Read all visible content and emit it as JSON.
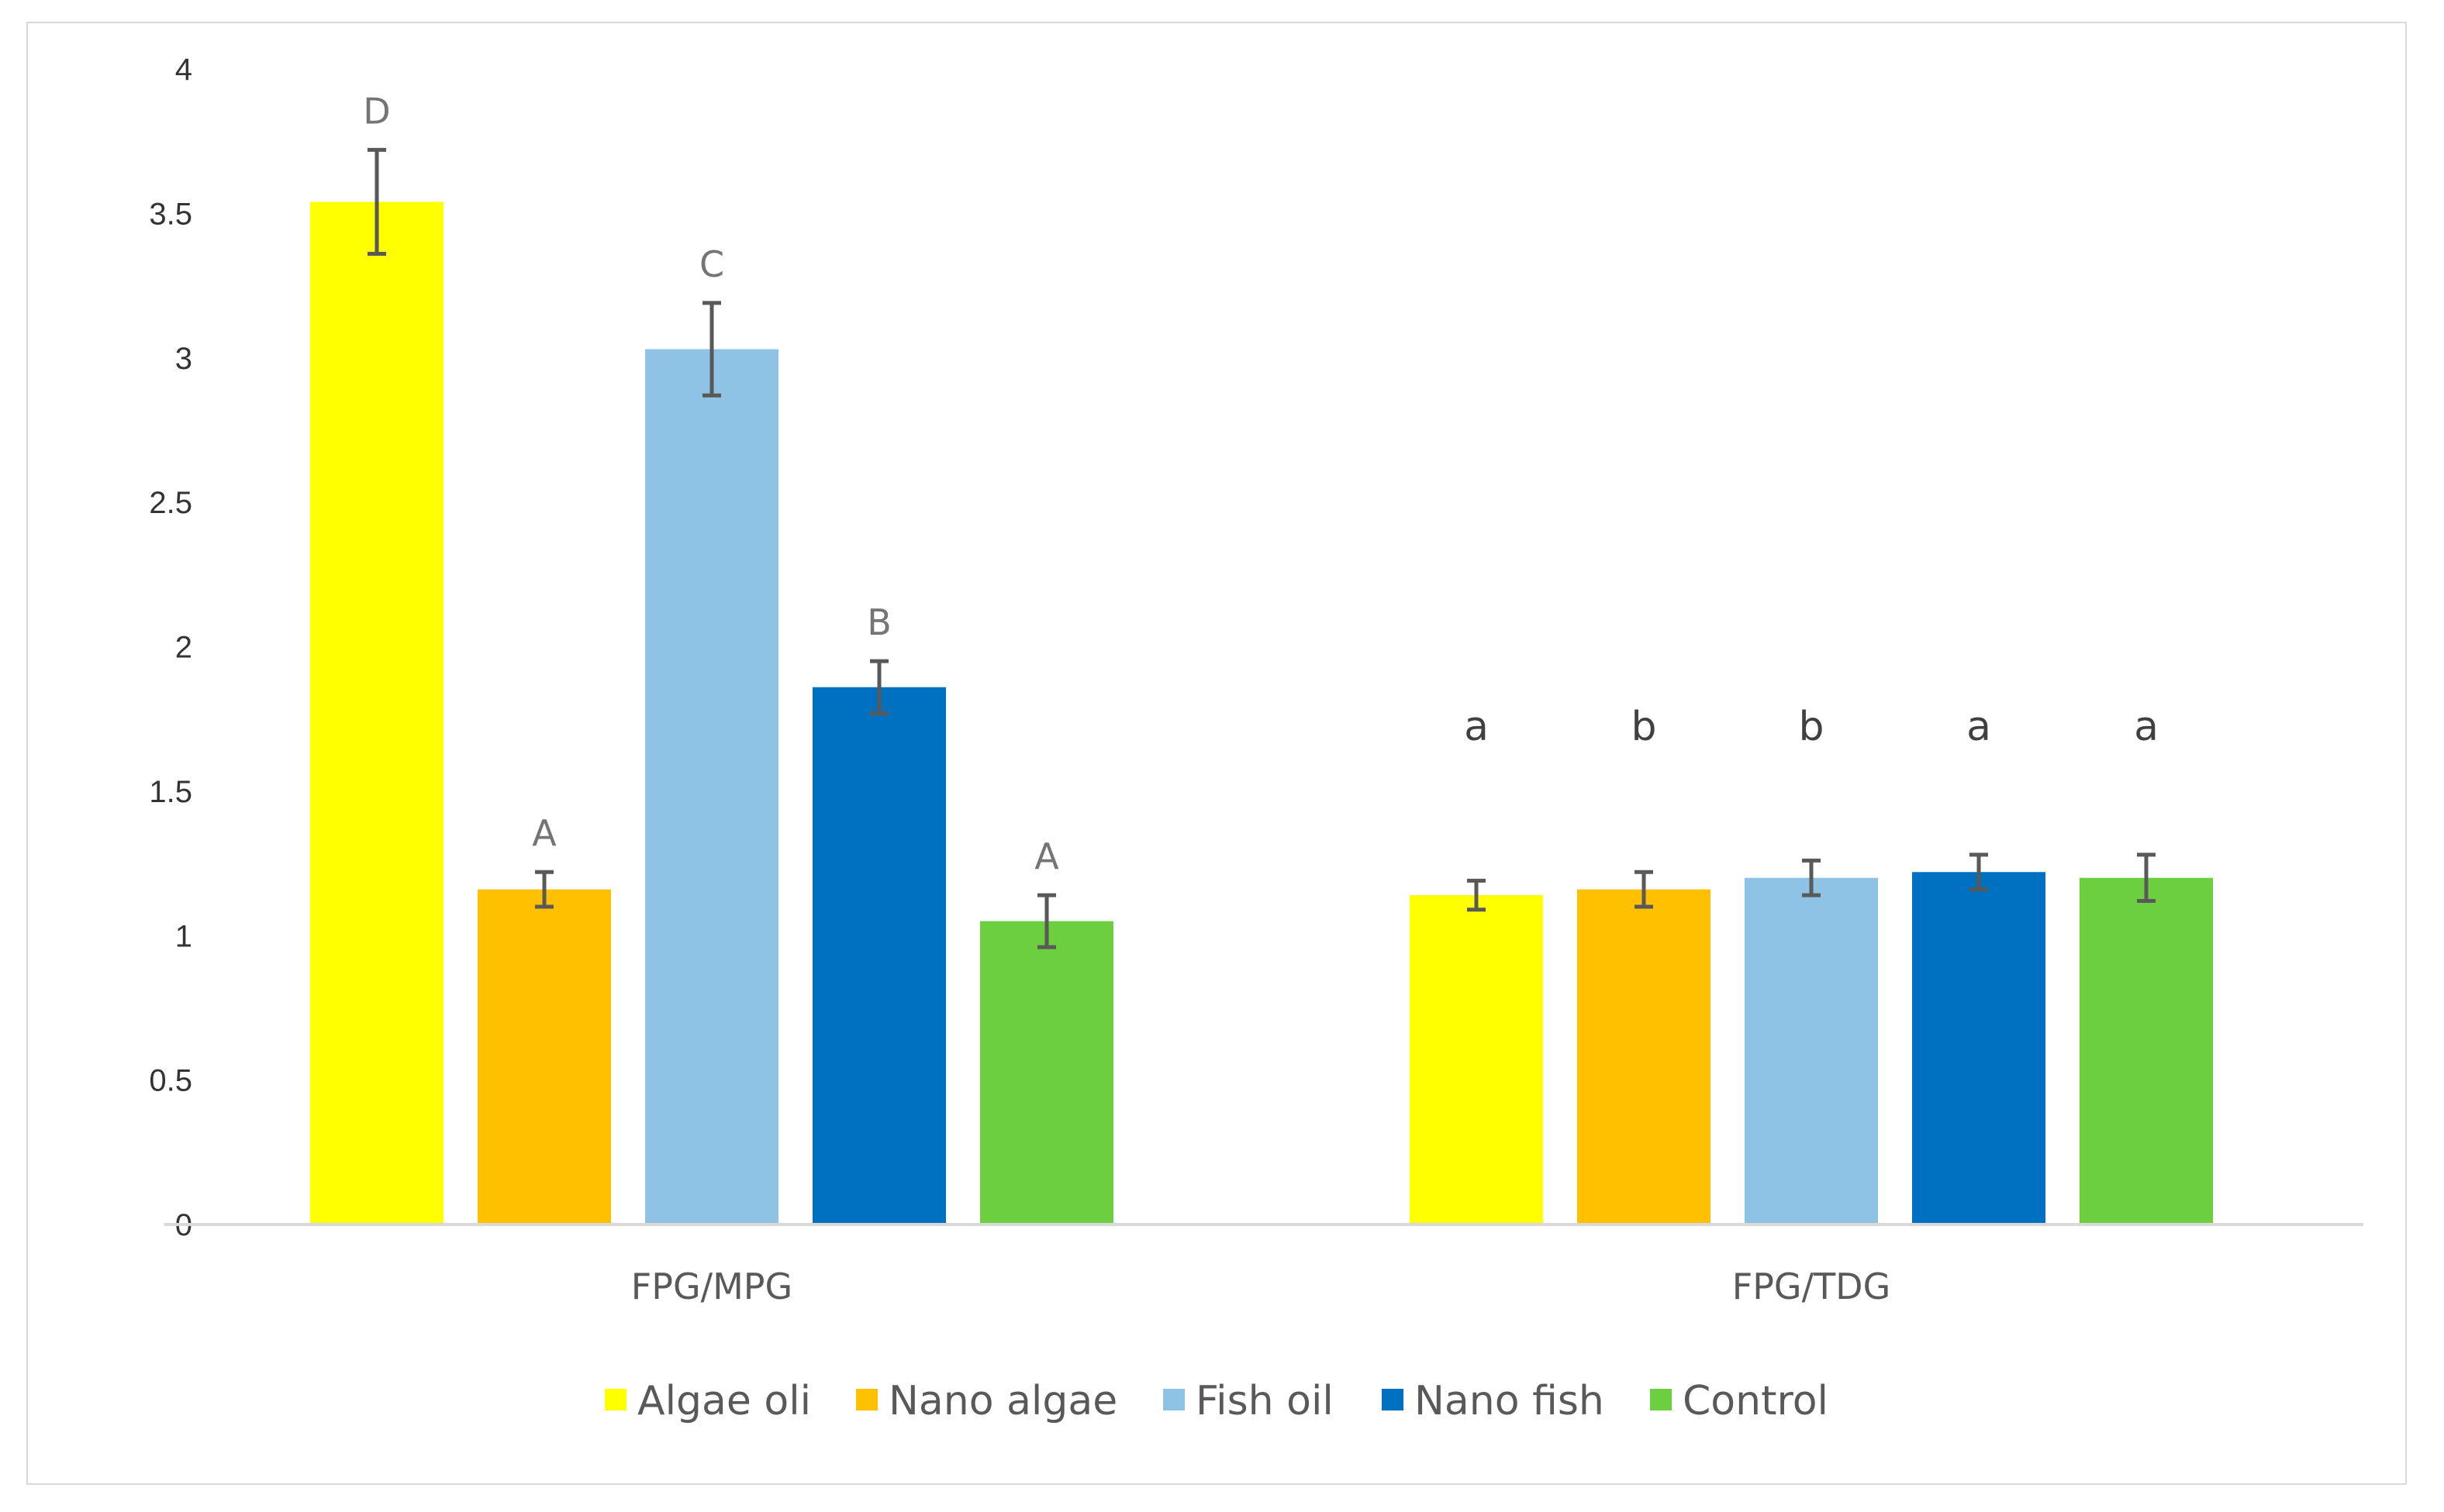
{
  "chart_data": {
    "type": "bar",
    "title": "",
    "xlabel": "",
    "ylabel": "",
    "ylim": [
      0,
      4
    ],
    "yticks": [
      "0",
      "0.5",
      "1",
      "1.5",
      "2",
      "2.5",
      "3",
      "3.5",
      "4"
    ],
    "grid": false,
    "legend_position": "bottom",
    "categories": [
      "FPG/MPG",
      "FPG/TDG"
    ],
    "series": [
      {
        "name": "Algae oli",
        "color": "#ffff00",
        "values": [
          3.54,
          1.14
        ],
        "errors": [
          0.18,
          0.05
        ],
        "significance": [
          "D",
          "a"
        ]
      },
      {
        "name": "Nano algae",
        "color": "#ffc000",
        "values": [
          1.16,
          1.16
        ],
        "errors": [
          0.06,
          0.06
        ],
        "significance": [
          "A",
          "b"
        ]
      },
      {
        "name": "Fish oil",
        "color": "#8ec3e6",
        "values": [
          3.03,
          1.2
        ],
        "errors": [
          0.16,
          0.06
        ],
        "significance": [
          "C",
          "b"
        ]
      },
      {
        "name": "Nano fish",
        "color": "#0070c0",
        "values": [
          1.86,
          1.22
        ],
        "errors": [
          0.09,
          0.06
        ],
        "significance": [
          "B",
          "a"
        ]
      },
      {
        "name": "Control",
        "color": "#6ccf3f",
        "values": [
          1.05,
          1.2
        ],
        "errors": [
          0.09,
          0.08
        ],
        "significance": [
          "A",
          "a"
        ]
      }
    ]
  }
}
